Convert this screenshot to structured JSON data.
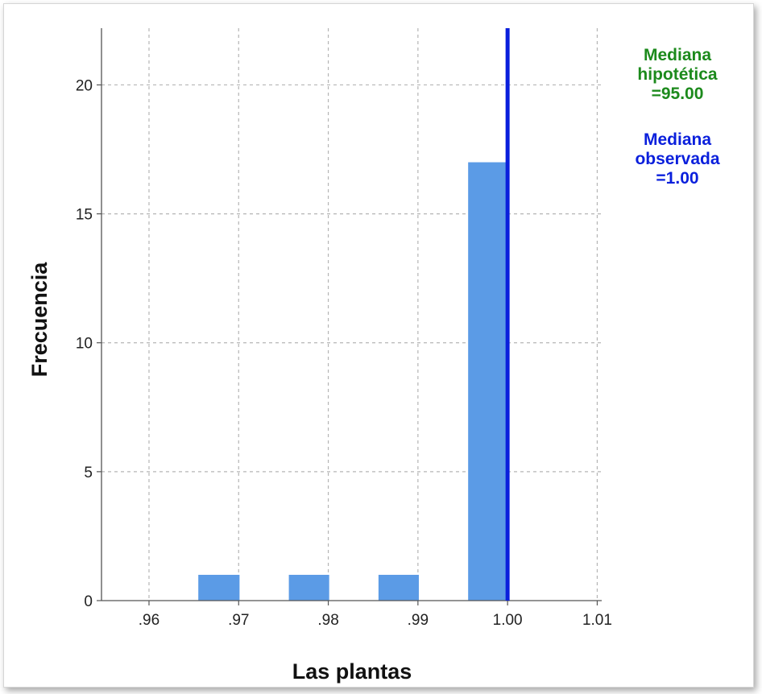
{
  "chart_data": {
    "type": "bar",
    "title": "",
    "xlabel": "Las plantas",
    "ylabel": "Frecuencia",
    "x_ticks": [
      0.96,
      0.97,
      0.98,
      0.99,
      1.0,
      1.01
    ],
    "x_tick_labels": [
      ".96",
      ".97",
      ".98",
      ".99",
      "1.00",
      "1.01"
    ],
    "y_ticks": [
      0,
      5,
      10,
      15,
      20
    ],
    "y_tick_labels": [
      "0",
      "5",
      "10",
      "15",
      "20"
    ],
    "xlim": [
      0.9547,
      1.0105
    ],
    "ylim": [
      0,
      22.2
    ],
    "grid": true,
    "bins": [
      {
        "x0": 0.9655,
        "x1": 0.9701,
        "count": 1
      },
      {
        "x0": 0.9756,
        "x1": 0.9801,
        "count": 1
      },
      {
        "x0": 0.9856,
        "x1": 0.9901,
        "count": 1
      },
      {
        "x0": 0.9956,
        "x1": 1.0001,
        "count": 17
      }
    ],
    "bar_color": "#5b9be6",
    "reference_lines": [
      {
        "label_lines": [
          "Mediana",
          "observada",
          "=1.00"
        ],
        "x": 1.0,
        "color": "#0a1fdc"
      }
    ],
    "annotations": [
      {
        "lines": [
          "Mediana",
          "hipotética",
          "=95.00"
        ],
        "color": "#1c8a1c"
      },
      {
        "lines": [
          "Mediana",
          "observada",
          "=1.00"
        ],
        "color": "#0a1fdc"
      }
    ],
    "legend_position": "top-right"
  }
}
